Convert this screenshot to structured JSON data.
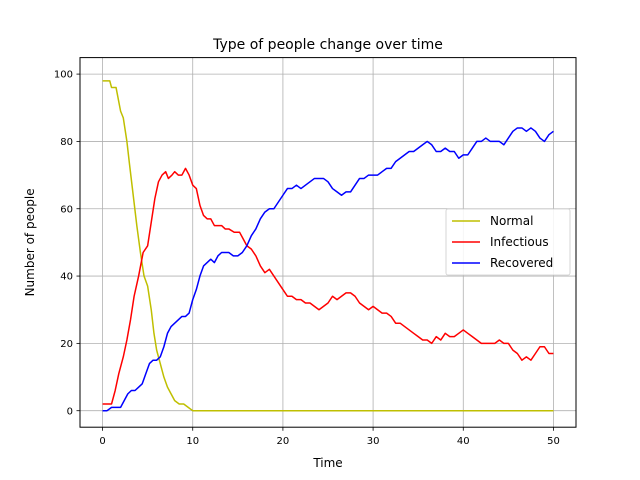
{
  "chart_data": {
    "type": "line",
    "title": "Type of people change over time",
    "xlabel": "Time",
    "ylabel": "Number of people",
    "xlim": [
      -2.5,
      52.5
    ],
    "ylim": [
      -4.9,
      104.9
    ],
    "xticks": [
      0,
      10,
      20,
      30,
      40,
      50
    ],
    "yticks": [
      0,
      20,
      40,
      60,
      80,
      100
    ],
    "grid": true,
    "legend_position": "center-right",
    "series": [
      {
        "name": "Normal",
        "color": "#bfbf00",
        "points": [
          [
            0,
            98
          ],
          [
            0.8,
            98
          ],
          [
            1,
            96
          ],
          [
            1.5,
            96
          ],
          [
            2,
            89
          ],
          [
            2.3,
            87
          ],
          [
            2.7,
            80
          ],
          [
            3,
            73
          ],
          [
            3.4,
            64
          ],
          [
            3.8,
            55
          ],
          [
            4.2,
            47
          ],
          [
            4.6,
            40
          ],
          [
            5,
            37
          ],
          [
            5.4,
            30
          ],
          [
            5.7,
            23
          ],
          [
            6,
            18
          ],
          [
            6.4,
            14
          ],
          [
            6.8,
            10
          ],
          [
            7.2,
            7
          ],
          [
            7.6,
            5
          ],
          [
            8,
            3
          ],
          [
            8.5,
            2
          ],
          [
            9,
            2
          ],
          [
            9.5,
            1
          ],
          [
            10,
            0
          ],
          [
            50,
            0
          ]
        ]
      },
      {
        "name": "Infectious",
        "color": "#ff0000",
        "points": [
          [
            0,
            2
          ],
          [
            0.5,
            2
          ],
          [
            1,
            2
          ],
          [
            1.4,
            6
          ],
          [
            1.8,
            11
          ],
          [
            2.3,
            16
          ],
          [
            2.7,
            21
          ],
          [
            3.1,
            27
          ],
          [
            3.5,
            34
          ],
          [
            4,
            40
          ],
          [
            4.5,
            47
          ],
          [
            5,
            49
          ],
          [
            5.4,
            56
          ],
          [
            5.8,
            63
          ],
          [
            6.2,
            68
          ],
          [
            6.6,
            70
          ],
          [
            7,
            71
          ],
          [
            7.3,
            69
          ],
          [
            7.7,
            70
          ],
          [
            8,
            71
          ],
          [
            8.4,
            70
          ],
          [
            8.8,
            70
          ],
          [
            9.2,
            72
          ],
          [
            9.6,
            70
          ],
          [
            10,
            67
          ],
          [
            10.4,
            66
          ],
          [
            10.8,
            61
          ],
          [
            11.2,
            58
          ],
          [
            11.6,
            57
          ],
          [
            12,
            57
          ],
          [
            12.4,
            55
          ],
          [
            12.8,
            55
          ],
          [
            13.2,
            55
          ],
          [
            13.6,
            54
          ],
          [
            14,
            54
          ],
          [
            14.6,
            53
          ],
          [
            15.2,
            53
          ],
          [
            15.6,
            51
          ],
          [
            16,
            49
          ],
          [
            16.5,
            48
          ],
          [
            17,
            46
          ],
          [
            17.5,
            43
          ],
          [
            18,
            41
          ],
          [
            18.5,
            42
          ],
          [
            19,
            40
          ],
          [
            19.5,
            38
          ],
          [
            20,
            36
          ],
          [
            20.5,
            34
          ],
          [
            21,
            34
          ],
          [
            21.5,
            33
          ],
          [
            22,
            33
          ],
          [
            22.5,
            32
          ],
          [
            23,
            32
          ],
          [
            23.5,
            31
          ],
          [
            24,
            30
          ],
          [
            24.5,
            31
          ],
          [
            25,
            32
          ],
          [
            25.5,
            34
          ],
          [
            26,
            33
          ],
          [
            26.5,
            34
          ],
          [
            27,
            35
          ],
          [
            27.5,
            35
          ],
          [
            28,
            34
          ],
          [
            28.5,
            32
          ],
          [
            29,
            31
          ],
          [
            29.5,
            30
          ],
          [
            30,
            31
          ],
          [
            30.5,
            30
          ],
          [
            31,
            29
          ],
          [
            31.5,
            29
          ],
          [
            32,
            28
          ],
          [
            32.5,
            26
          ],
          [
            33,
            26
          ],
          [
            33.5,
            25
          ],
          [
            34,
            24
          ],
          [
            34.5,
            23
          ],
          [
            35,
            22
          ],
          [
            35.5,
            21
          ],
          [
            36,
            21
          ],
          [
            36.5,
            20
          ],
          [
            37,
            22
          ],
          [
            37.5,
            21
          ],
          [
            38,
            23
          ],
          [
            38.5,
            22
          ],
          [
            39,
            22
          ],
          [
            39.5,
            23
          ],
          [
            40,
            24
          ],
          [
            40.5,
            23
          ],
          [
            41,
            22
          ],
          [
            41.5,
            21
          ],
          [
            42,
            20
          ],
          [
            42.5,
            20
          ],
          [
            43,
            20
          ],
          [
            43.5,
            20
          ],
          [
            44,
            21
          ],
          [
            44.5,
            20
          ],
          [
            45,
            20
          ],
          [
            45.5,
            18
          ],
          [
            46,
            17
          ],
          [
            46.5,
            15
          ],
          [
            47,
            16
          ],
          [
            47.5,
            15
          ],
          [
            48,
            17
          ],
          [
            48.5,
            19
          ],
          [
            49,
            19
          ],
          [
            49.5,
            17
          ],
          [
            50,
            17
          ]
        ]
      },
      {
        "name": "Recovered",
        "color": "#0000ff",
        "points": [
          [
            0,
            0
          ],
          [
            0.5,
            0
          ],
          [
            1,
            1
          ],
          [
            1.5,
            1
          ],
          [
            2,
            1
          ],
          [
            2.4,
            3
          ],
          [
            2.8,
            5
          ],
          [
            3.2,
            6
          ],
          [
            3.6,
            6
          ],
          [
            4,
            7
          ],
          [
            4.4,
            8
          ],
          [
            4.8,
            11
          ],
          [
            5.2,
            14
          ],
          [
            5.6,
            15
          ],
          [
            6,
            15
          ],
          [
            6.4,
            16
          ],
          [
            6.8,
            19
          ],
          [
            7.2,
            23
          ],
          [
            7.6,
            25
          ],
          [
            8,
            26
          ],
          [
            8.4,
            27
          ],
          [
            8.8,
            28
          ],
          [
            9.2,
            28
          ],
          [
            9.6,
            29
          ],
          [
            10,
            33
          ],
          [
            10.4,
            36
          ],
          [
            10.8,
            40
          ],
          [
            11.2,
            43
          ],
          [
            11.6,
            44
          ],
          [
            12,
            45
          ],
          [
            12.4,
            44
          ],
          [
            12.8,
            46
          ],
          [
            13.2,
            47
          ],
          [
            13.6,
            47
          ],
          [
            14,
            47
          ],
          [
            14.5,
            46
          ],
          [
            15,
            46
          ],
          [
            15.5,
            47
          ],
          [
            16,
            49
          ],
          [
            16.5,
            52
          ],
          [
            17,
            54
          ],
          [
            17.5,
            57
          ],
          [
            18,
            59
          ],
          [
            18.5,
            60
          ],
          [
            19,
            60
          ],
          [
            19.5,
            62
          ],
          [
            20,
            64
          ],
          [
            20.5,
            66
          ],
          [
            21,
            66
          ],
          [
            21.5,
            67
          ],
          [
            22,
            66
          ],
          [
            22.5,
            67
          ],
          [
            23,
            68
          ],
          [
            23.5,
            69
          ],
          [
            24,
            69
          ],
          [
            24.5,
            69
          ],
          [
            25,
            68
          ],
          [
            25.5,
            66
          ],
          [
            26,
            65
          ],
          [
            26.5,
            64
          ],
          [
            27,
            65
          ],
          [
            27.5,
            65
          ],
          [
            28,
            67
          ],
          [
            28.5,
            69
          ],
          [
            29,
            69
          ],
          [
            29.5,
            70
          ],
          [
            30,
            70
          ],
          [
            30.5,
            70
          ],
          [
            31,
            71
          ],
          [
            31.5,
            72
          ],
          [
            32,
            72
          ],
          [
            32.5,
            74
          ],
          [
            33,
            75
          ],
          [
            33.5,
            76
          ],
          [
            34,
            77
          ],
          [
            34.5,
            77
          ],
          [
            35,
            78
          ],
          [
            35.5,
            79
          ],
          [
            36,
            80
          ],
          [
            36.5,
            79
          ],
          [
            37,
            77
          ],
          [
            37.5,
            77
          ],
          [
            38,
            78
          ],
          [
            38.5,
            77
          ],
          [
            39,
            77
          ],
          [
            39.5,
            75
          ],
          [
            40,
            76
          ],
          [
            40.5,
            76
          ],
          [
            41,
            78
          ],
          [
            41.5,
            80
          ],
          [
            42,
            80
          ],
          [
            42.5,
            81
          ],
          [
            43,
            80
          ],
          [
            43.5,
            80
          ],
          [
            44,
            80
          ],
          [
            44.5,
            79
          ],
          [
            45,
            81
          ],
          [
            45.5,
            83
          ],
          [
            46,
            84
          ],
          [
            46.5,
            84
          ],
          [
            47,
            83
          ],
          [
            47.5,
            84
          ],
          [
            48,
            83
          ],
          [
            48.5,
            81
          ],
          [
            49,
            80
          ],
          [
            49.5,
            82
          ],
          [
            50,
            83
          ]
        ]
      }
    ]
  }
}
